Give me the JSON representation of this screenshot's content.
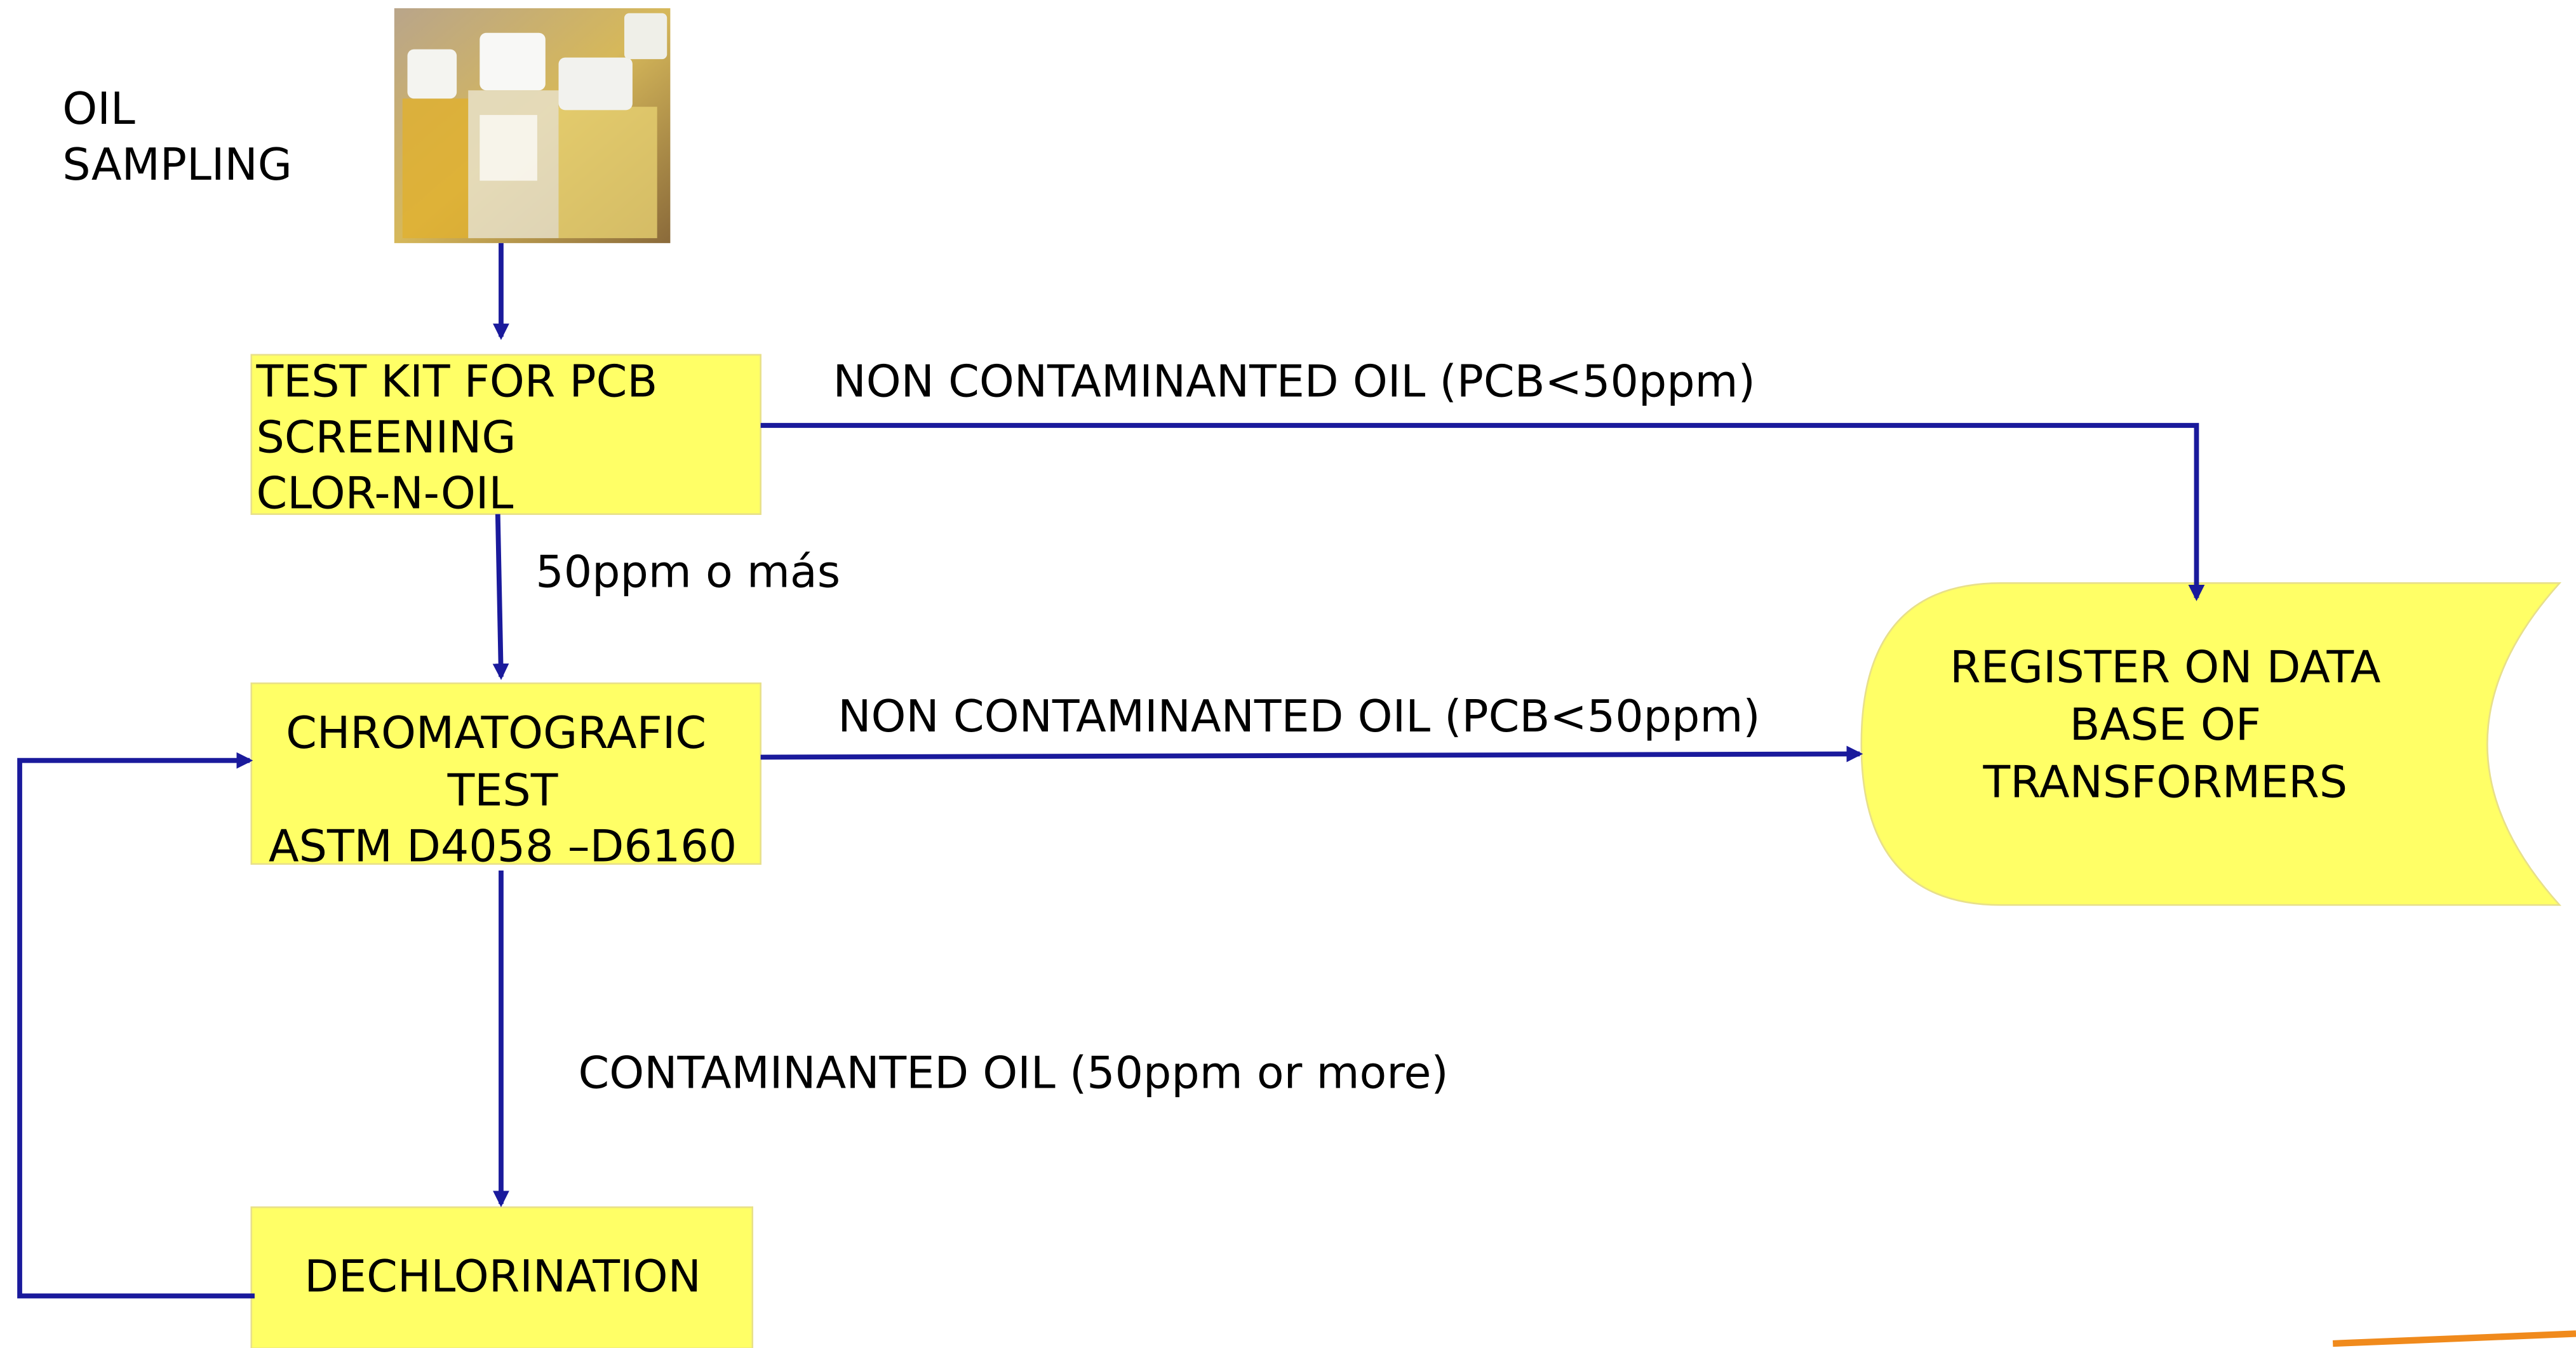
{
  "nodes": [
    {
      "label": [
        "OIL",
        "SAMPLING"
      ]
    },
    {
      "label": [
        "TEST KIT FOR PCB",
        "SCREENING",
        "CLOR-N-OIL"
      ]
    },
    {
      "label": [
        "CHROMATOGRAFIC",
        "TEST",
        "ASTM D4058 –D6160"
      ]
    },
    {
      "label": [
        "DECHLORINATION"
      ]
    },
    {
      "label": [
        "REGISTER ON DATA",
        "BASE OF",
        "TRANSFORMERS"
      ]
    }
  ],
  "edges": [
    {
      "label": "NON CONTAMINANTED OIL (PCB<50ppm)"
    },
    {
      "label": "50ppm o más"
    },
    {
      "label": "NON CONTAMINANTED OIL (PCB<50ppm)"
    },
    {
      "label": "CONTAMINANTED OIL (50ppm or more)"
    }
  ]
}
